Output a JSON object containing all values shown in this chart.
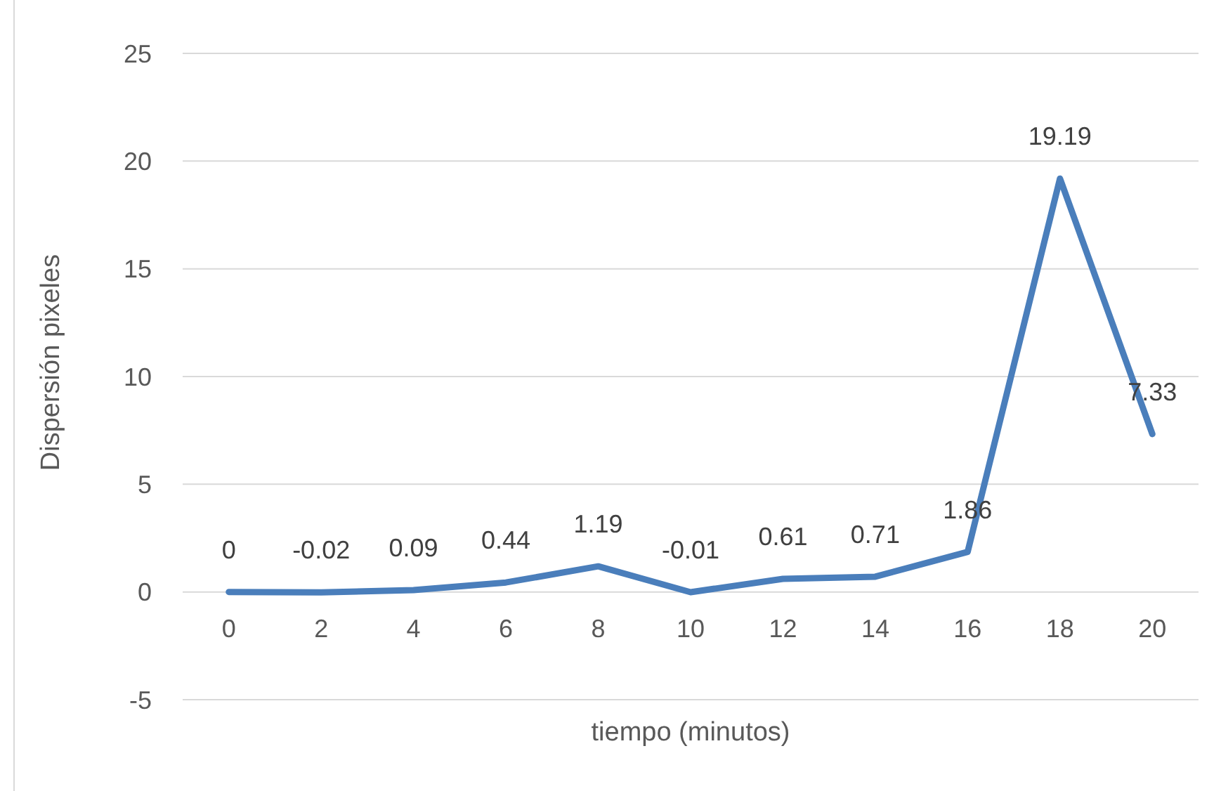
{
  "chart_data": {
    "type": "line",
    "xlabel": "tiempo (minutos)",
    "ylabel": "Dispersión pixeles",
    "categories": [
      "0",
      "2",
      "4",
      "6",
      "8",
      "10",
      "12",
      "14",
      "16",
      "18",
      "20"
    ],
    "series": [
      {
        "color": "#4a7ebb",
        "values": [
          0,
          -0.02,
          0.09,
          0.44,
          1.19,
          -0.01,
          0.61,
          0.71,
          1.86,
          19.19,
          7.33
        ]
      }
    ],
    "ylim": [
      -5,
      25
    ],
    "yticks": [
      -5,
      0,
      5,
      10,
      15,
      20,
      25
    ],
    "grid": "y",
    "data_labels": true
  }
}
